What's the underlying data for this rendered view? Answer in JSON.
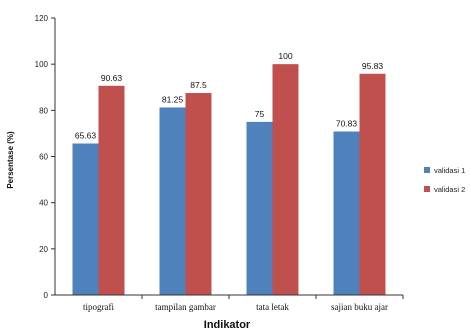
{
  "chart_data": {
    "type": "bar",
    "title": "",
    "xlabel": "Indikator",
    "ylabel": "Persentase (%)",
    "categories": [
      "tipografi",
      "tampilan gambar",
      "tata letak",
      "sajian buku ajar"
    ],
    "series": [
      {
        "name": "validasi 1",
        "values": [
          65.63,
          81.25,
          75,
          70.83
        ],
        "labels": [
          "65.63",
          "81.25",
          "75",
          "70.83"
        ],
        "color": "#4F81BD"
      },
      {
        "name": "validasi 2",
        "values": [
          90.63,
          87.5,
          100,
          95.83
        ],
        "labels": [
          "90.63",
          "87.5",
          "100",
          "95.83"
        ],
        "color": "#C0504D"
      }
    ],
    "ylim": [
      0,
      120
    ],
    "yticks": [
      "0",
      "20",
      "40",
      "60",
      "80",
      "100",
      "120"
    ],
    "grid": false,
    "legend": "right"
  }
}
